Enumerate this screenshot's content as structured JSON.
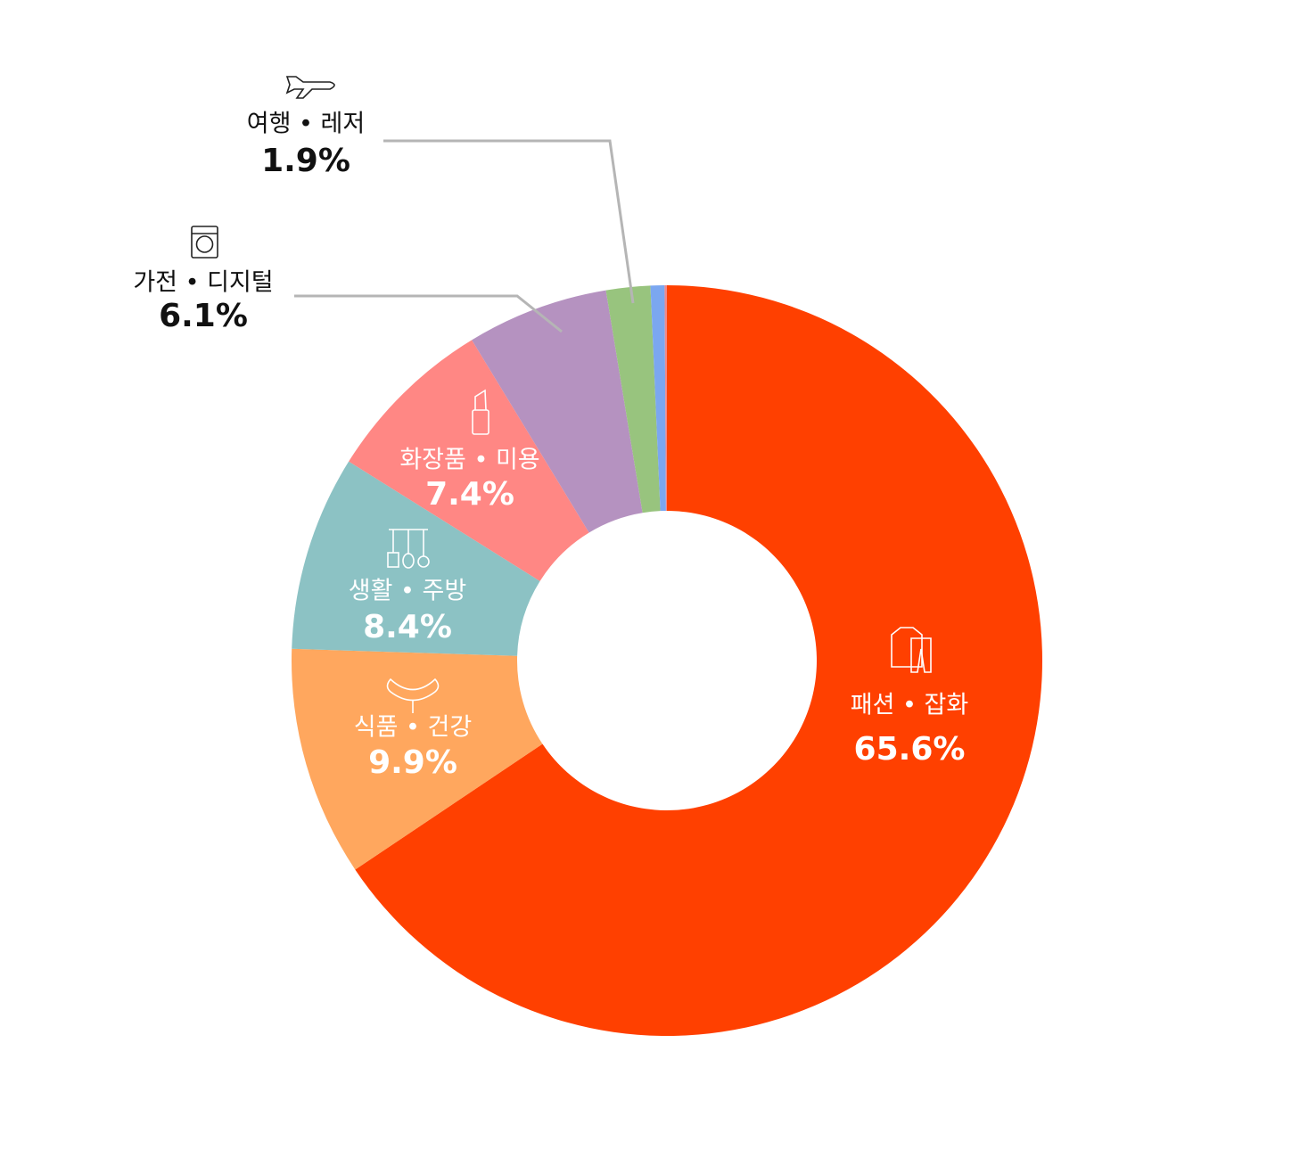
{
  "chart_data": {
    "type": "donut",
    "categories": [
      "패션 • 잡화",
      "식품 • 건강",
      "생활 • 주방",
      "화장품 • 미용",
      "가전 • 디지털",
      "여행 • 레저",
      null,
      null
    ],
    "values": [
      65.6,
      9.9,
      8.4,
      7.4,
      6.1,
      1.9,
      0.6,
      0.1
    ],
    "value_labels": [
      "65.6%",
      "9.9%",
      "8.4%",
      "7.4%",
      "6.1%",
      "1.9%",
      null,
      null
    ],
    "colors": [
      "#ff4000",
      "#ffa75e",
      "#8cc2c4",
      "#ff8784",
      "#b592c0",
      "#98c47e",
      "#7ba7f0",
      "#f08a8a"
    ]
  }
}
